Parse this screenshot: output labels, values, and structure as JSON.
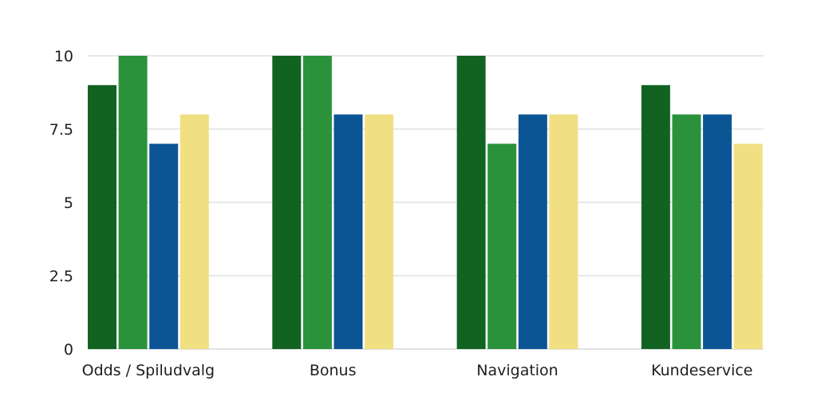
{
  "chart_data": {
    "type": "bar",
    "title": "",
    "xlabel": "",
    "ylabel": "",
    "categories": [
      "Odds / Spiludvalg",
      "Bonus",
      "Navigation",
      "Kundeservice"
    ],
    "series": [
      {
        "color": "#126322",
        "values": [
          9,
          10,
          10,
          9
        ]
      },
      {
        "color": "#2a923b",
        "values": [
          10,
          10,
          7,
          8
        ]
      },
      {
        "color": "#0c5595",
        "values": [
          7,
          8,
          8,
          8
        ]
      },
      {
        "color": "#f1df83",
        "values": [
          8,
          8,
          8,
          7
        ]
      }
    ],
    "ylim": [
      0,
      10
    ],
    "yticks": [
      0,
      2.5,
      5,
      7.5,
      10
    ],
    "ytick_labels": [
      "0",
      "2.5",
      "5",
      "7.5",
      "10"
    ],
    "grid": true,
    "legend": "none"
  }
}
